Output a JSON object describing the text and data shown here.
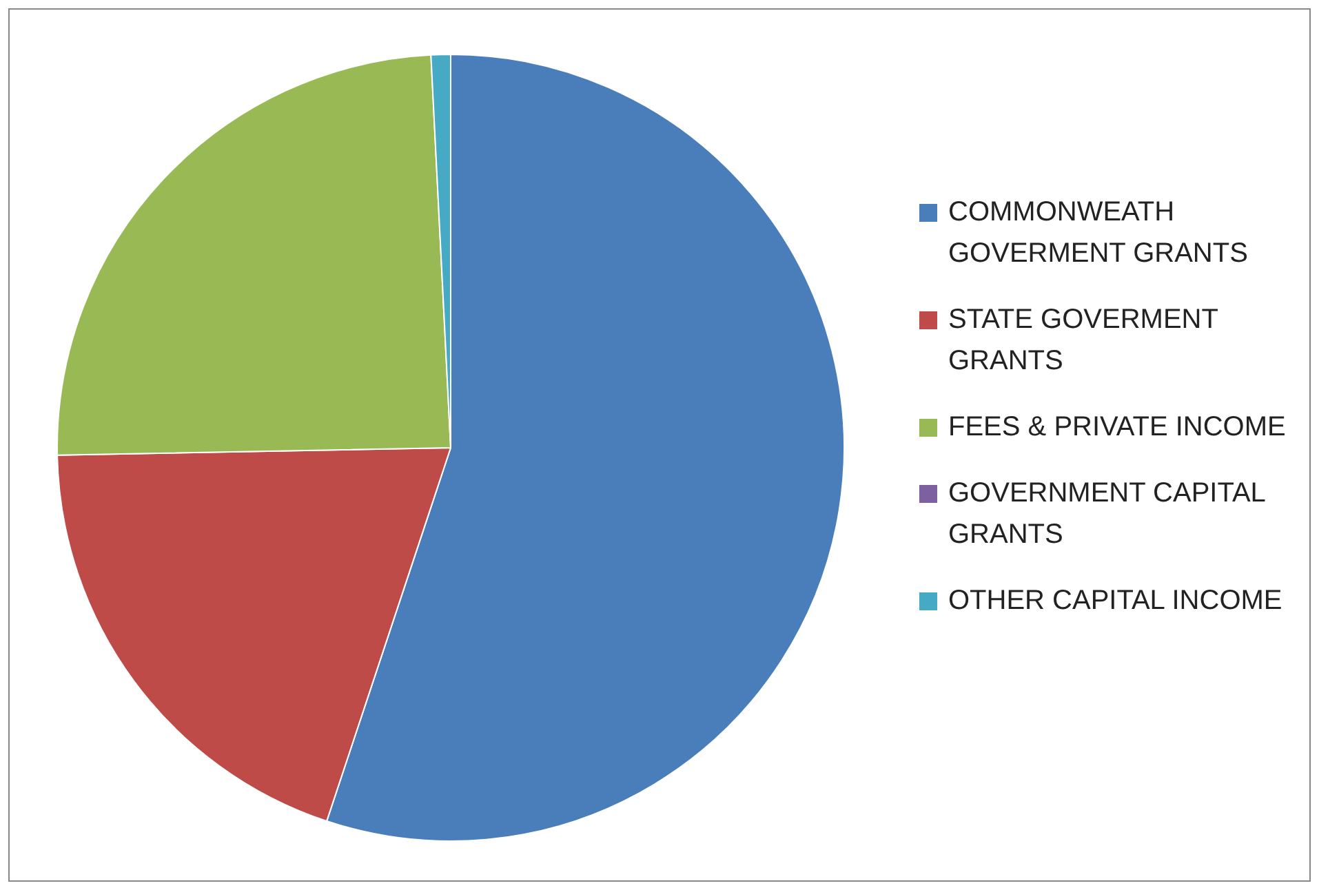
{
  "chart_data": {
    "type": "pie",
    "categories": [
      "COMMONWEATH GOVERMENT GRANTS",
      "STATE GOVERMENT GRANTS",
      "FEES & PRIVATE INCOME",
      "GOVERNMENT CAPITAL GRANTS",
      "OTHER CAPITAL INCOME"
    ],
    "values": [
      55.1,
      19.6,
      24.5,
      0,
      0.8
    ],
    "colors": [
      "#4a7ebb",
      "#be4b48",
      "#98b954",
      "#7d60a0",
      "#46aac5"
    ],
    "legend": "right"
  }
}
